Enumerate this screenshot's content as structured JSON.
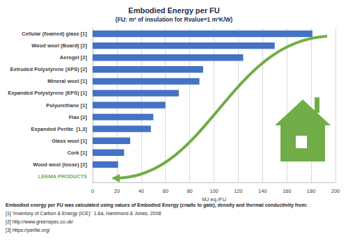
{
  "chart_data": {
    "type": "bar",
    "orientation": "horizontal",
    "title": "Embodied Energy per FU",
    "subtitle": "(FU: m² of insulation for Rvalue=1 m²K/W)",
    "categories": [
      "Cellular (foamed) glass [1]",
      "Wood wool (Board) [2]",
      "Aerogel [2]",
      "Extruded Polystyrene (XPS) [2]",
      "Mineral wool [1]",
      "Expanded Polystyrene (EPS) [1]",
      "Polyurethane [1]",
      "Flax [2]",
      "Expanded Perlite  [1,3]",
      "Glass wool [1]",
      "Cork [1]",
      "Wood wool (loose) [2]",
      "LEEMA PRODUCTS"
    ],
    "values": [
      181,
      150,
      124,
      91,
      88,
      71,
      60,
      50,
      48,
      31,
      26,
      21,
      null
    ],
    "color": "#4472c4",
    "xlabel": "MJ eq./FU",
    "xlim": [
      0,
      200
    ],
    "xticks": [
      0,
      20,
      40,
      60,
      80,
      100,
      120,
      140,
      160,
      180,
      200
    ],
    "grid": true,
    "notes": [
      "Embodied energy per FU was calculated using values of Embodied Energy (cradle to gate), density and thermal conductivity from:",
      "[1] 'Inventory of Carbon & Energy (ICE)'  1.6a, Hammond & Jones, 2008",
      "[2] http://www.greenspec.co.uk/",
      "[3] https://perlite.org/"
    ]
  }
}
